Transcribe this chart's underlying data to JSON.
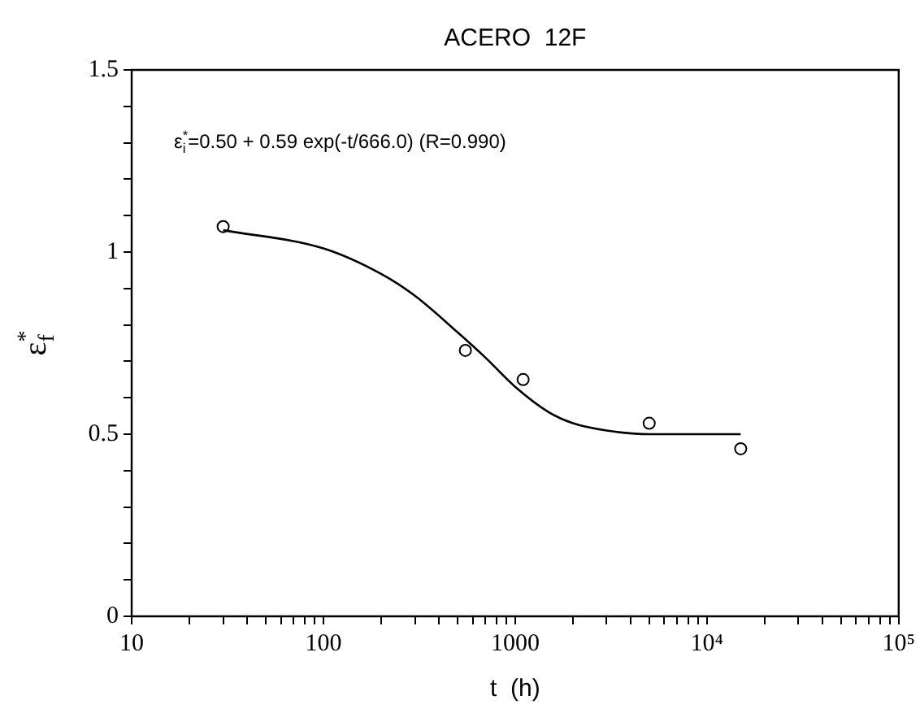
{
  "chart_data": {
    "type": "scatter",
    "title": "ACERO  12F",
    "xlabel": "t  (h)",
    "ylabel": "ε$_{f}$$^{*}$",
    "annotations": [
      "ε$_{i}$$^{*}$=0.50 + 0.59 exp(-t/666.0) (R=0.990)"
    ],
    "log": "x",
    "grid": false,
    "legend": false,
    "marker": "circle",
    "xlim": [
      10,
      100000
    ],
    "ylim": [
      0,
      1.5
    ],
    "xticks": [
      10,
      {
        "value": 20,
        "label": null
      },
      {
        "value": 30,
        "label": null
      },
      {
        "value": 40,
        "label": null
      },
      {
        "value": 50,
        "label": null
      },
      {
        "value": 60,
        "label": null
      },
      {
        "value": 70,
        "label": null
      },
      {
        "value": 80,
        "label": null
      },
      {
        "value": 90,
        "label": null
      },
      100,
      {
        "value": 200,
        "label": null
      },
      {
        "value": 300,
        "label": null
      },
      {
        "value": 400,
        "label": null
      },
      {
        "value": 500,
        "label": null
      },
      {
        "value": 600,
        "label": null
      },
      {
        "value": 700,
        "label": null
      },
      {
        "value": 800,
        "label": null
      },
      {
        "value": 900,
        "label": null
      },
      1000,
      {
        "value": 2000,
        "label": null
      },
      {
        "value": 3000,
        "label": null
      },
      {
        "value": 4000,
        "label": null
      },
      {
        "value": 5000,
        "label": null
      },
      {
        "value": 6000,
        "label": null
      },
      {
        "value": 7000,
        "label": null
      },
      {
        "value": 8000,
        "label": null
      },
      {
        "value": 9000,
        "label": null
      },
      {
        "value": 10000,
        "label": "10⁴"
      },
      {
        "value": 20000,
        "label": null
      },
      {
        "value": 30000,
        "label": null
      },
      {
        "value": 40000,
        "label": null
      },
      {
        "value": 50000,
        "label": null
      },
      {
        "value": 60000,
        "label": null
      },
      {
        "value": 70000,
        "label": null
      },
      {
        "value": 80000,
        "label": null
      },
      {
        "value": 90000,
        "label": null
      },
      {
        "value": 100000,
        "label": "10⁵"
      }
    ],
    "yticks": [
      0,
      {
        "value": 0.1,
        "label": null
      },
      {
        "value": 0.2,
        "label": null
      },
      {
        "value": 0.3,
        "label": null
      },
      {
        "value": 0.4,
        "label": null
      },
      0.5,
      {
        "value": 0.6,
        "label": null
      },
      {
        "value": 0.7,
        "label": null
      },
      {
        "value": 0.8,
        "label": null
      },
      {
        "value": 0.9,
        "label": null
      },
      1,
      {
        "value": 1.1,
        "label": null
      },
      {
        "value": 1.2,
        "label": null
      },
      {
        "value": 1.3,
        "label": null
      },
      {
        "value": 1.4,
        "label": null
      },
      1.5
    ],
    "series": [
      {
        "type": "scatter",
        "color": "#000000",
        "x": [
          30,
          550,
          1100,
          5000,
          15000
        ],
        "values": [
          1.07,
          0.73,
          0.65,
          0.53,
          0.46
        ]
      },
      {
        "type": "line",
        "color": "#000000",
        "marker": "none",
        "line_style": "solid",
        "x": [
          30,
          100,
          200,
          300,
          500,
          700,
          1000,
          1500,
          2000,
          3000,
          5000,
          15000
        ],
        "values": [
          1.06,
          1.01,
          0.94,
          0.88,
          0.78,
          0.71,
          0.63,
          0.56,
          0.53,
          0.51,
          0.5,
          0.5
        ]
      }
    ]
  }
}
